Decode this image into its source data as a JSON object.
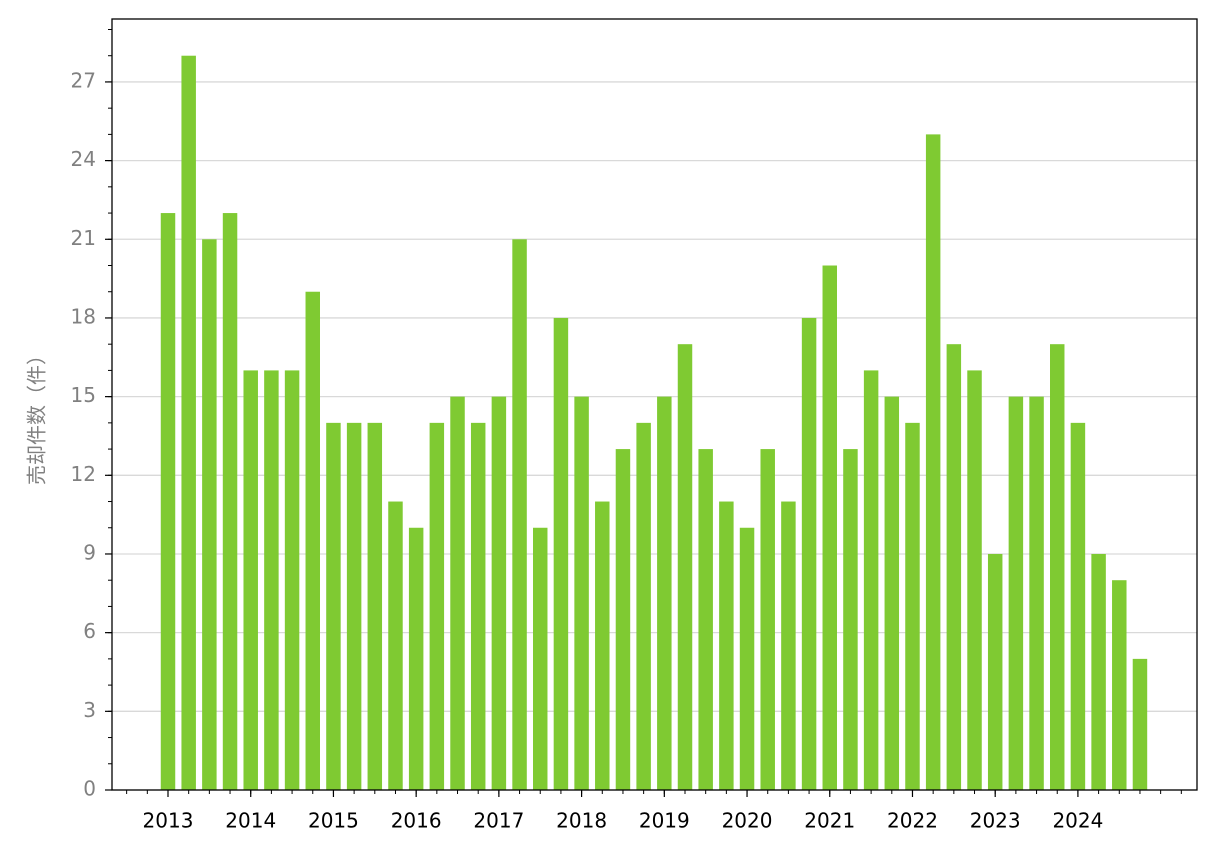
{
  "chart_data": {
    "type": "bar",
    "ylabel": "売却件数（件）",
    "categories": [
      "2013",
      null,
      null,
      null,
      "2014",
      null,
      null,
      null,
      "2015",
      null,
      null,
      null,
      "2016",
      null,
      null,
      null,
      "2017",
      null,
      null,
      null,
      "2018",
      null,
      null,
      null,
      "2019",
      null,
      null,
      null,
      "2020",
      null,
      null,
      null,
      "2021",
      null,
      null,
      null,
      "2022",
      null,
      null,
      null,
      "2023",
      null,
      null,
      null,
      "2024",
      null,
      null,
      null
    ],
    "values": [
      22,
      28,
      21,
      22,
      16,
      16,
      16,
      19,
      14,
      14,
      14,
      11,
      10,
      14,
      15,
      14,
      15,
      21,
      10,
      18,
      15,
      11,
      13,
      14,
      15,
      17,
      13,
      11,
      10,
      13,
      11,
      18,
      20,
      13,
      16,
      15,
      14,
      25,
      17,
      16,
      9,
      15,
      15,
      17,
      14,
      9,
      8,
      5
    ],
    "color": "#7fca32",
    "ylim": [
      0,
      29.4
    ],
    "yticks": [
      0,
      3,
      6,
      9,
      12,
      15,
      18,
      21,
      24,
      27
    ],
    "grid": true
  }
}
